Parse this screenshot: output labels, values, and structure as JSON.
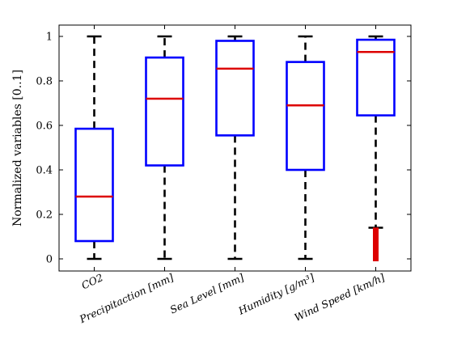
{
  "chart_data": {
    "type": "boxplot",
    "title": "",
    "xlabel": "",
    "ylabel": "Normalized variables [0..1]",
    "ylim": [
      -0.05,
      1.05
    ],
    "yticks": [
      0,
      0.2,
      0.4,
      0.6,
      0.8,
      1
    ],
    "ytick_labels": [
      "0",
      "0.2",
      "0.4",
      "0.6",
      "0.8",
      "1"
    ],
    "grid": false,
    "colors": {
      "box": "#0000ff",
      "median": "#dd0000",
      "whisker": "#000000",
      "outlier": "#dd0000"
    },
    "categories": [
      "CO2",
      "Precipitaction [mm]",
      "Sea Level [mm]",
      "Humidity [g/m³]",
      "Wind Speed [km/h]"
    ],
    "boxes": [
      {
        "name": "CO2",
        "whisker_low": 0.0,
        "q1": 0.08,
        "median": 0.28,
        "q3": 0.585,
        "whisker_high": 1.0,
        "outliers": []
      },
      {
        "name": "Precipitaction [mm]",
        "whisker_low": 0.0,
        "q1": 0.42,
        "median": 0.72,
        "q3": 0.905,
        "whisker_high": 1.0,
        "outliers": []
      },
      {
        "name": "Sea Level [mm]",
        "whisker_low": 0.0,
        "q1": 0.555,
        "median": 0.855,
        "q3": 0.98,
        "whisker_high": 1.0,
        "outliers": []
      },
      {
        "name": "Humidity [g/m³]",
        "whisker_low": 0.0,
        "q1": 0.4,
        "median": 0.69,
        "q3": 0.885,
        "whisker_high": 1.0,
        "outliers": []
      },
      {
        "name": "Wind Speed [km/h]",
        "whisker_low": 0.14,
        "q1": 0.645,
        "median": 0.93,
        "q3": 0.985,
        "whisker_high": 1.0,
        "outliers": [
          0.0,
          0.005,
          0.01,
          0.015,
          0.02,
          0.025,
          0.03,
          0.035,
          0.04,
          0.045,
          0.05,
          0.055,
          0.06,
          0.065,
          0.07,
          0.075,
          0.08,
          0.085,
          0.09,
          0.095,
          0.1,
          0.105,
          0.11,
          0.115,
          0.12,
          0.125,
          0.13
        ]
      }
    ]
  }
}
